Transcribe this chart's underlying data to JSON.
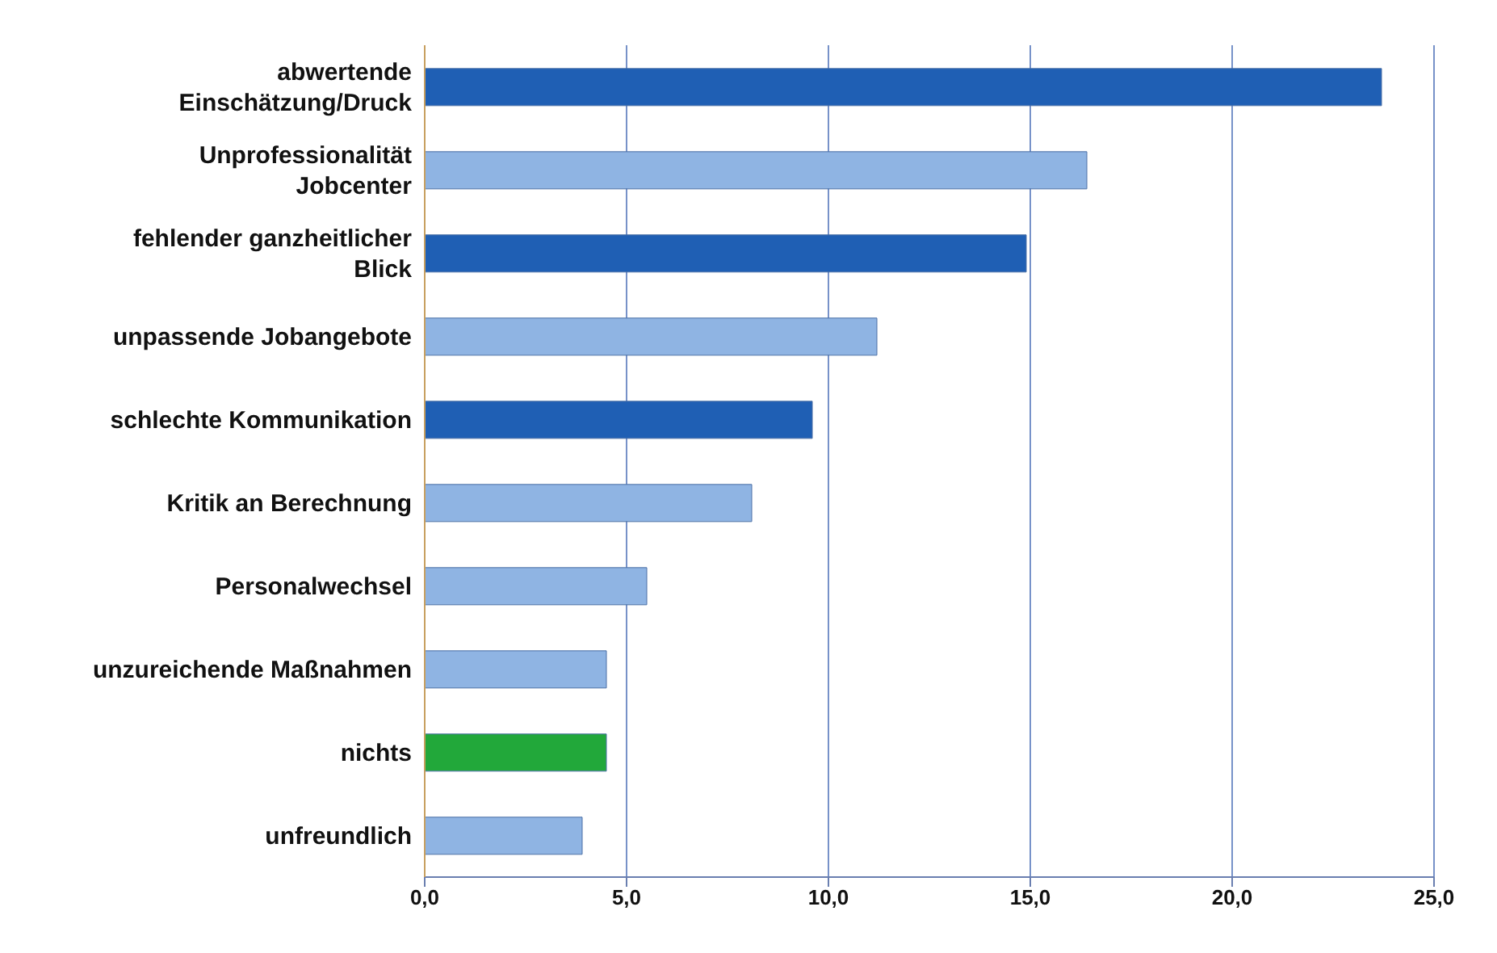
{
  "chart_data": {
    "type": "bar",
    "orientation": "horizontal",
    "categories": [
      "abwertende Einschätzung/Druck",
      "Unprofessionalität Jobcenter",
      "fehlender ganzheitlicher Blick",
      "unpassende Jobangebote",
      "schlechte Kommunikation",
      "Kritik an Berechnung",
      "Personalwechsel",
      "unzureichende Maßnahmen",
      "nichts",
      "unfreundlich"
    ],
    "values": [
      23.7,
      16.4,
      14.9,
      11.2,
      9.6,
      8.1,
      5.5,
      4.5,
      4.5,
      3.9
    ],
    "colors": [
      "#1f5fb4",
      "#8fb4e3",
      "#1f5fb4",
      "#8fb4e3",
      "#1f5fb4",
      "#8fb4e3",
      "#8fb4e3",
      "#8fb4e3",
      "#22a83a",
      "#8fb4e3"
    ],
    "xlim": [
      0,
      25
    ],
    "xticks": [
      {
        "value": 0,
        "label": "0,0"
      },
      {
        "value": 5,
        "label": "5,0"
      },
      {
        "value": 10,
        "label": "10,0"
      },
      {
        "value": 15,
        "label": "15,0"
      },
      {
        "value": 20,
        "label": "20,0"
      },
      {
        "value": 25,
        "label": "25,0"
      }
    ],
    "grid": "x"
  }
}
